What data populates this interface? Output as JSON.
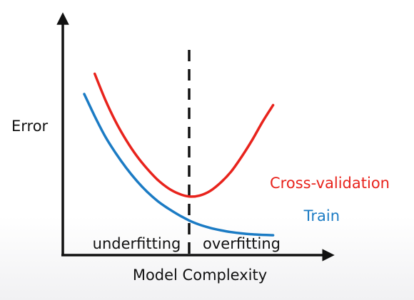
{
  "chart_data": {
    "type": "line",
    "title": "",
    "xlabel": "Model Complexity",
    "ylabel": "Error",
    "xlim": [
      0,
      10
    ],
    "ylim": [
      0,
      10
    ],
    "grid": false,
    "legend": "inline-right",
    "series": [
      {
        "name": "Cross-validation",
        "color": "#e8231c",
        "x": [
          0.5,
          1,
          1.5,
          2,
          2.5,
          3,
          3.5,
          4,
          4.5,
          5,
          5.5,
          6,
          6.5,
          7,
          7.5,
          8,
          8.5,
          9
        ],
        "y": [
          8.9,
          7.5,
          6.3,
          5.3,
          4.45,
          3.75,
          3.15,
          2.7,
          2.4,
          2.25,
          2.3,
          2.55,
          3.0,
          3.6,
          4.4,
          5.3,
          6.3,
          7.2
        ]
      },
      {
        "name": "Train",
        "color": "#1b7bc4",
        "x": [
          0,
          0.5,
          1,
          1.5,
          2,
          2.5,
          3,
          3.5,
          4,
          4.5,
          5,
          5.5,
          6,
          6.5,
          7,
          7.5,
          8,
          8.5,
          9
        ],
        "y": [
          7.8,
          6.6,
          5.5,
          4.6,
          3.8,
          3.1,
          2.5,
          2.0,
          1.6,
          1.25,
          0.95,
          0.72,
          0.55,
          0.42,
          0.32,
          0.25,
          0.2,
          0.17,
          0.15
        ]
      }
    ],
    "vline": {
      "x": 5,
      "style": "dashed",
      "color": "#111111"
    },
    "regions": [
      {
        "label": "underfitting",
        "x_center": 2.5
      },
      {
        "label": "overfitting",
        "x_center": 7.5
      }
    ]
  }
}
